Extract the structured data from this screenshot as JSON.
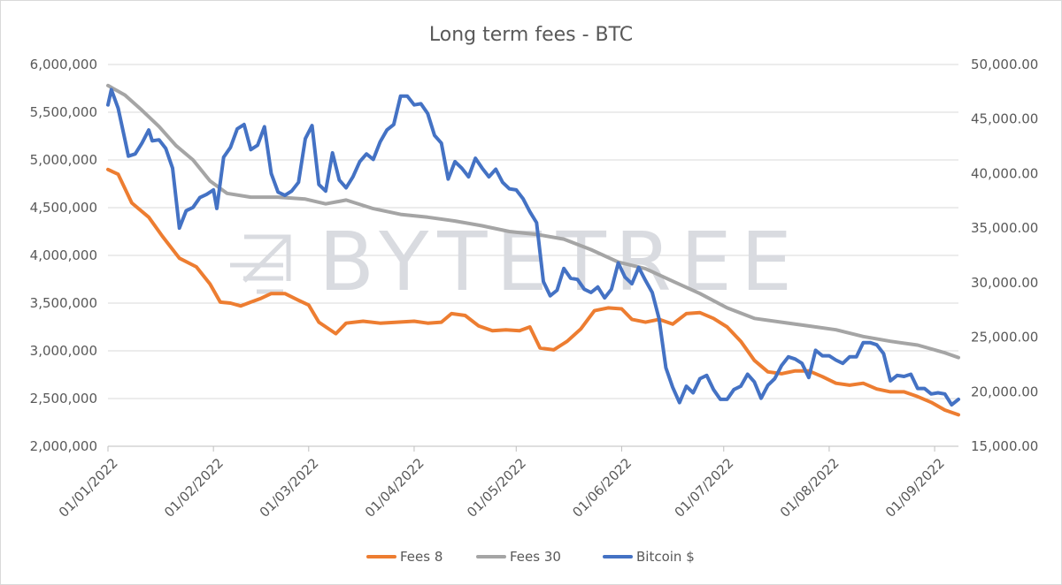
{
  "chart_data": {
    "type": "line",
    "title": "Long term fees - BTC",
    "watermark": "BYTETREE",
    "xlabel": "",
    "ylabel": "",
    "x_start": "01/01/2022",
    "x_end": "08/09/2022",
    "x_ticks": [
      "01/01/2022",
      "01/02/2022",
      "01/03/2022",
      "01/04/2022",
      "01/05/2022",
      "01/06/2022",
      "01/07/2022",
      "01/08/2022",
      "01/09/2022"
    ],
    "y_left": {
      "min": 2000000,
      "max": 6000000,
      "step": 500000,
      "tick_labels": [
        "2,000,000",
        "2,500,000",
        "3,000,000",
        "3,500,000",
        "4,000,000",
        "4,500,000",
        "5,000,000",
        "5,500,000",
        "6,000,000"
      ]
    },
    "y_right": {
      "min": 15000,
      "max": 50000,
      "step": 5000,
      "tick_labels": [
        "15,000.00",
        "20,000.00",
        "25,000.00",
        "30,000.00",
        "35,000.00",
        "40,000.00",
        "45,000.00",
        "50,000.00"
      ]
    },
    "grid": true,
    "legend_position": "bottom",
    "series": [
      {
        "name": "Fees 8",
        "axis": "left",
        "color": "#ED7D31",
        "points": [
          [
            "01/01/2022",
            4900000
          ],
          [
            "04/01/2022",
            4850000
          ],
          [
            "08/01/2022",
            4550000
          ],
          [
            "13/01/2022",
            4400000
          ],
          [
            "17/01/2022",
            4200000
          ],
          [
            "22/01/2022",
            3970000
          ],
          [
            "27/01/2022",
            3880000
          ],
          [
            "31/01/2022",
            3700000
          ],
          [
            "03/02/2022",
            3510000
          ],
          [
            "06/02/2022",
            3500000
          ],
          [
            "09/02/2022",
            3470000
          ],
          [
            "12/02/2022",
            3510000
          ],
          [
            "15/02/2022",
            3550000
          ],
          [
            "18/02/2022",
            3600000
          ],
          [
            "22/02/2022",
            3600000
          ],
          [
            "26/02/2022",
            3530000
          ],
          [
            "01/03/2022",
            3480000
          ],
          [
            "04/03/2022",
            3300000
          ],
          [
            "09/03/2022",
            3180000
          ],
          [
            "12/03/2022",
            3290000
          ],
          [
            "17/03/2022",
            3310000
          ],
          [
            "22/03/2022",
            3290000
          ],
          [
            "27/03/2022",
            3300000
          ],
          [
            "01/04/2022",
            3310000
          ],
          [
            "05/04/2022",
            3290000
          ],
          [
            "09/04/2022",
            3300000
          ],
          [
            "12/04/2022",
            3390000
          ],
          [
            "16/04/2022",
            3370000
          ],
          [
            "20/04/2022",
            3260000
          ],
          [
            "24/04/2022",
            3210000
          ],
          [
            "28/04/2022",
            3220000
          ],
          [
            "02/05/2022",
            3210000
          ],
          [
            "05/05/2022",
            3250000
          ],
          [
            "08/05/2022",
            3030000
          ],
          [
            "12/05/2022",
            3010000
          ],
          [
            "16/05/2022",
            3100000
          ],
          [
            "20/05/2022",
            3230000
          ],
          [
            "24/05/2022",
            3420000
          ],
          [
            "28/05/2022",
            3450000
          ],
          [
            "01/06/2022",
            3440000
          ],
          [
            "04/06/2022",
            3330000
          ],
          [
            "08/06/2022",
            3300000
          ],
          [
            "12/06/2022",
            3330000
          ],
          [
            "16/06/2022",
            3280000
          ],
          [
            "20/06/2022",
            3390000
          ],
          [
            "24/06/2022",
            3400000
          ],
          [
            "28/06/2022",
            3340000
          ],
          [
            "02/07/2022",
            3250000
          ],
          [
            "06/07/2022",
            3100000
          ],
          [
            "10/07/2022",
            2900000
          ],
          [
            "14/07/2022",
            2780000
          ],
          [
            "18/07/2022",
            2760000
          ],
          [
            "22/07/2022",
            2790000
          ],
          [
            "26/07/2022",
            2790000
          ],
          [
            "30/07/2022",
            2730000
          ],
          [
            "03/08/2022",
            2660000
          ],
          [
            "07/08/2022",
            2640000
          ],
          [
            "11/08/2022",
            2660000
          ],
          [
            "15/08/2022",
            2600000
          ],
          [
            "19/08/2022",
            2570000
          ],
          [
            "23/08/2022",
            2570000
          ],
          [
            "27/08/2022",
            2520000
          ],
          [
            "31/08/2022",
            2460000
          ],
          [
            "04/09/2022",
            2380000
          ],
          [
            "08/09/2022",
            2330000
          ]
        ]
      },
      {
        "name": "Fees 30",
        "axis": "left",
        "color": "#A5A5A5",
        "points": [
          [
            "01/01/2022",
            5780000
          ],
          [
            "06/01/2022",
            5680000
          ],
          [
            "11/01/2022",
            5520000
          ],
          [
            "16/01/2022",
            5350000
          ],
          [
            "21/01/2022",
            5150000
          ],
          [
            "26/01/2022",
            5000000
          ],
          [
            "31/01/2022",
            4780000
          ],
          [
            "05/02/2022",
            4650000
          ],
          [
            "12/02/2022",
            4610000
          ],
          [
            "20/02/2022",
            4610000
          ],
          [
            "28/02/2022",
            4590000
          ],
          [
            "06/03/2022",
            4540000
          ],
          [
            "12/03/2022",
            4580000
          ],
          [
            "20/03/2022",
            4490000
          ],
          [
            "28/03/2022",
            4430000
          ],
          [
            "05/04/2022",
            4400000
          ],
          [
            "13/04/2022",
            4360000
          ],
          [
            "21/04/2022",
            4310000
          ],
          [
            "29/04/2022",
            4250000
          ],
          [
            "07/05/2022",
            4220000
          ],
          [
            "15/05/2022",
            4170000
          ],
          [
            "23/05/2022",
            4060000
          ],
          [
            "31/05/2022",
            3930000
          ],
          [
            "08/06/2022",
            3860000
          ],
          [
            "16/06/2022",
            3730000
          ],
          [
            "24/06/2022",
            3600000
          ],
          [
            "02/07/2022",
            3450000
          ],
          [
            "10/07/2022",
            3340000
          ],
          [
            "18/07/2022",
            3300000
          ],
          [
            "26/07/2022",
            3260000
          ],
          [
            "03/08/2022",
            3220000
          ],
          [
            "11/08/2022",
            3150000
          ],
          [
            "19/08/2022",
            3100000
          ],
          [
            "27/08/2022",
            3060000
          ],
          [
            "04/09/2022",
            2980000
          ],
          [
            "08/09/2022",
            2930000
          ]
        ]
      },
      {
        "name": "Bitcoin $",
        "axis": "right",
        "color": "#4472C4",
        "points": [
          [
            "01/01/2022",
            46300
          ],
          [
            "02/01/2022",
            47700
          ],
          [
            "04/01/2022",
            46000
          ],
          [
            "06/01/2022",
            43100
          ],
          [
            "07/01/2022",
            41600
          ],
          [
            "09/01/2022",
            41800
          ],
          [
            "11/01/2022",
            42800
          ],
          [
            "13/01/2022",
            44000
          ],
          [
            "14/01/2022",
            43000
          ],
          [
            "16/01/2022",
            43100
          ],
          [
            "18/01/2022",
            42300
          ],
          [
            "20/01/2022",
            40500
          ],
          [
            "22/01/2022",
            35000
          ],
          [
            "24/01/2022",
            36600
          ],
          [
            "26/01/2022",
            36900
          ],
          [
            "28/01/2022",
            37800
          ],
          [
            "30/01/2022",
            38100
          ],
          [
            "01/02/2022",
            38500
          ],
          [
            "02/02/2022",
            36800
          ],
          [
            "04/02/2022",
            41500
          ],
          [
            "06/02/2022",
            42400
          ],
          [
            "08/02/2022",
            44100
          ],
          [
            "10/02/2022",
            44500
          ],
          [
            "12/02/2022",
            42200
          ],
          [
            "14/02/2022",
            42600
          ],
          [
            "16/02/2022",
            44300
          ],
          [
            "18/02/2022",
            40000
          ],
          [
            "20/02/2022",
            38300
          ],
          [
            "22/02/2022",
            38000
          ],
          [
            "24/02/2022",
            38400
          ],
          [
            "26/02/2022",
            39200
          ],
          [
            "28/02/2022",
            43200
          ],
          [
            "02/03/2022",
            44400
          ],
          [
            "04/03/2022",
            39000
          ],
          [
            "06/03/2022",
            38400
          ],
          [
            "08/03/2022",
            41900
          ],
          [
            "10/03/2022",
            39400
          ],
          [
            "12/03/2022",
            38700
          ],
          [
            "14/03/2022",
            39700
          ],
          [
            "16/03/2022",
            41100
          ],
          [
            "18/03/2022",
            41800
          ],
          [
            "20/03/2022",
            41300
          ],
          [
            "22/03/2022",
            42900
          ],
          [
            "24/03/2022",
            44000
          ],
          [
            "26/03/2022",
            44500
          ],
          [
            "28/03/2022",
            47100
          ],
          [
            "30/03/2022",
            47100
          ],
          [
            "01/04/2022",
            46300
          ],
          [
            "03/04/2022",
            46400
          ],
          [
            "05/04/2022",
            45500
          ],
          [
            "07/04/2022",
            43500
          ],
          [
            "09/04/2022",
            42800
          ],
          [
            "11/04/2022",
            39500
          ],
          [
            "13/04/2022",
            41100
          ],
          [
            "15/04/2022",
            40500
          ],
          [
            "17/04/2022",
            39700
          ],
          [
            "19/04/2022",
            41400
          ],
          [
            "21/04/2022",
            40500
          ],
          [
            "23/04/2022",
            39700
          ],
          [
            "25/04/2022",
            40400
          ],
          [
            "27/04/2022",
            39200
          ],
          [
            "29/04/2022",
            38600
          ],
          [
            "01/05/2022",
            38500
          ],
          [
            "03/05/2022",
            37700
          ],
          [
            "05/05/2022",
            36500
          ],
          [
            "07/05/2022",
            35500
          ],
          [
            "09/05/2022",
            30100
          ],
          [
            "11/05/2022",
            28800
          ],
          [
            "13/05/2022",
            29300
          ],
          [
            "15/05/2022",
            31300
          ],
          [
            "17/05/2022",
            30400
          ],
          [
            "19/05/2022",
            30300
          ],
          [
            "21/05/2022",
            29400
          ],
          [
            "23/05/2022",
            29100
          ],
          [
            "25/05/2022",
            29600
          ],
          [
            "27/05/2022",
            28600
          ],
          [
            "29/05/2022",
            29400
          ],
          [
            "31/05/2022",
            31800
          ],
          [
            "02/06/2022",
            30500
          ],
          [
            "04/06/2022",
            29900
          ],
          [
            "06/06/2022",
            31400
          ],
          [
            "08/06/2022",
            30200
          ],
          [
            "10/06/2022",
            29100
          ],
          [
            "12/06/2022",
            26700
          ],
          [
            "14/06/2022",
            22200
          ],
          [
            "16/06/2022",
            20400
          ],
          [
            "18/06/2022",
            19000
          ],
          [
            "20/06/2022",
            20500
          ],
          [
            "22/06/2022",
            19900
          ],
          [
            "24/06/2022",
            21200
          ],
          [
            "26/06/2022",
            21500
          ],
          [
            "28/06/2022",
            20200
          ],
          [
            "30/06/2022",
            19300
          ],
          [
            "02/07/2022",
            19300
          ],
          [
            "04/07/2022",
            20200
          ],
          [
            "06/07/2022",
            20500
          ],
          [
            "08/07/2022",
            21600
          ],
          [
            "10/07/2022",
            20900
          ],
          [
            "12/07/2022",
            19400
          ],
          [
            "14/07/2022",
            20600
          ],
          [
            "16/07/2022",
            21200
          ],
          [
            "18/07/2022",
            22400
          ],
          [
            "20/07/2022",
            23200
          ],
          [
            "22/07/2022",
            23000
          ],
          [
            "24/07/2022",
            22600
          ],
          [
            "26/07/2022",
            21300
          ],
          [
            "28/07/2022",
            23800
          ],
          [
            "30/07/2022",
            23300
          ],
          [
            "01/08/2022",
            23300
          ],
          [
            "03/08/2022",
            22900
          ],
          [
            "05/08/2022",
            22600
          ],
          [
            "07/08/2022",
            23200
          ],
          [
            "09/08/2022",
            23200
          ],
          [
            "11/08/2022",
            24500
          ],
          [
            "13/08/2022",
            24500
          ],
          [
            "15/08/2022",
            24300
          ],
          [
            "17/08/2022",
            23500
          ],
          [
            "19/08/2022",
            21000
          ],
          [
            "21/08/2022",
            21500
          ],
          [
            "23/08/2022",
            21400
          ],
          [
            "25/08/2022",
            21600
          ],
          [
            "27/08/2022",
            20300
          ],
          [
            "29/08/2022",
            20300
          ],
          [
            "31/08/2022",
            19800
          ],
          [
            "02/09/2022",
            19900
          ],
          [
            "04/09/2022",
            19800
          ],
          [
            "06/09/2022",
            18800
          ],
          [
            "08/09/2022",
            19300
          ]
        ]
      }
    ]
  }
}
